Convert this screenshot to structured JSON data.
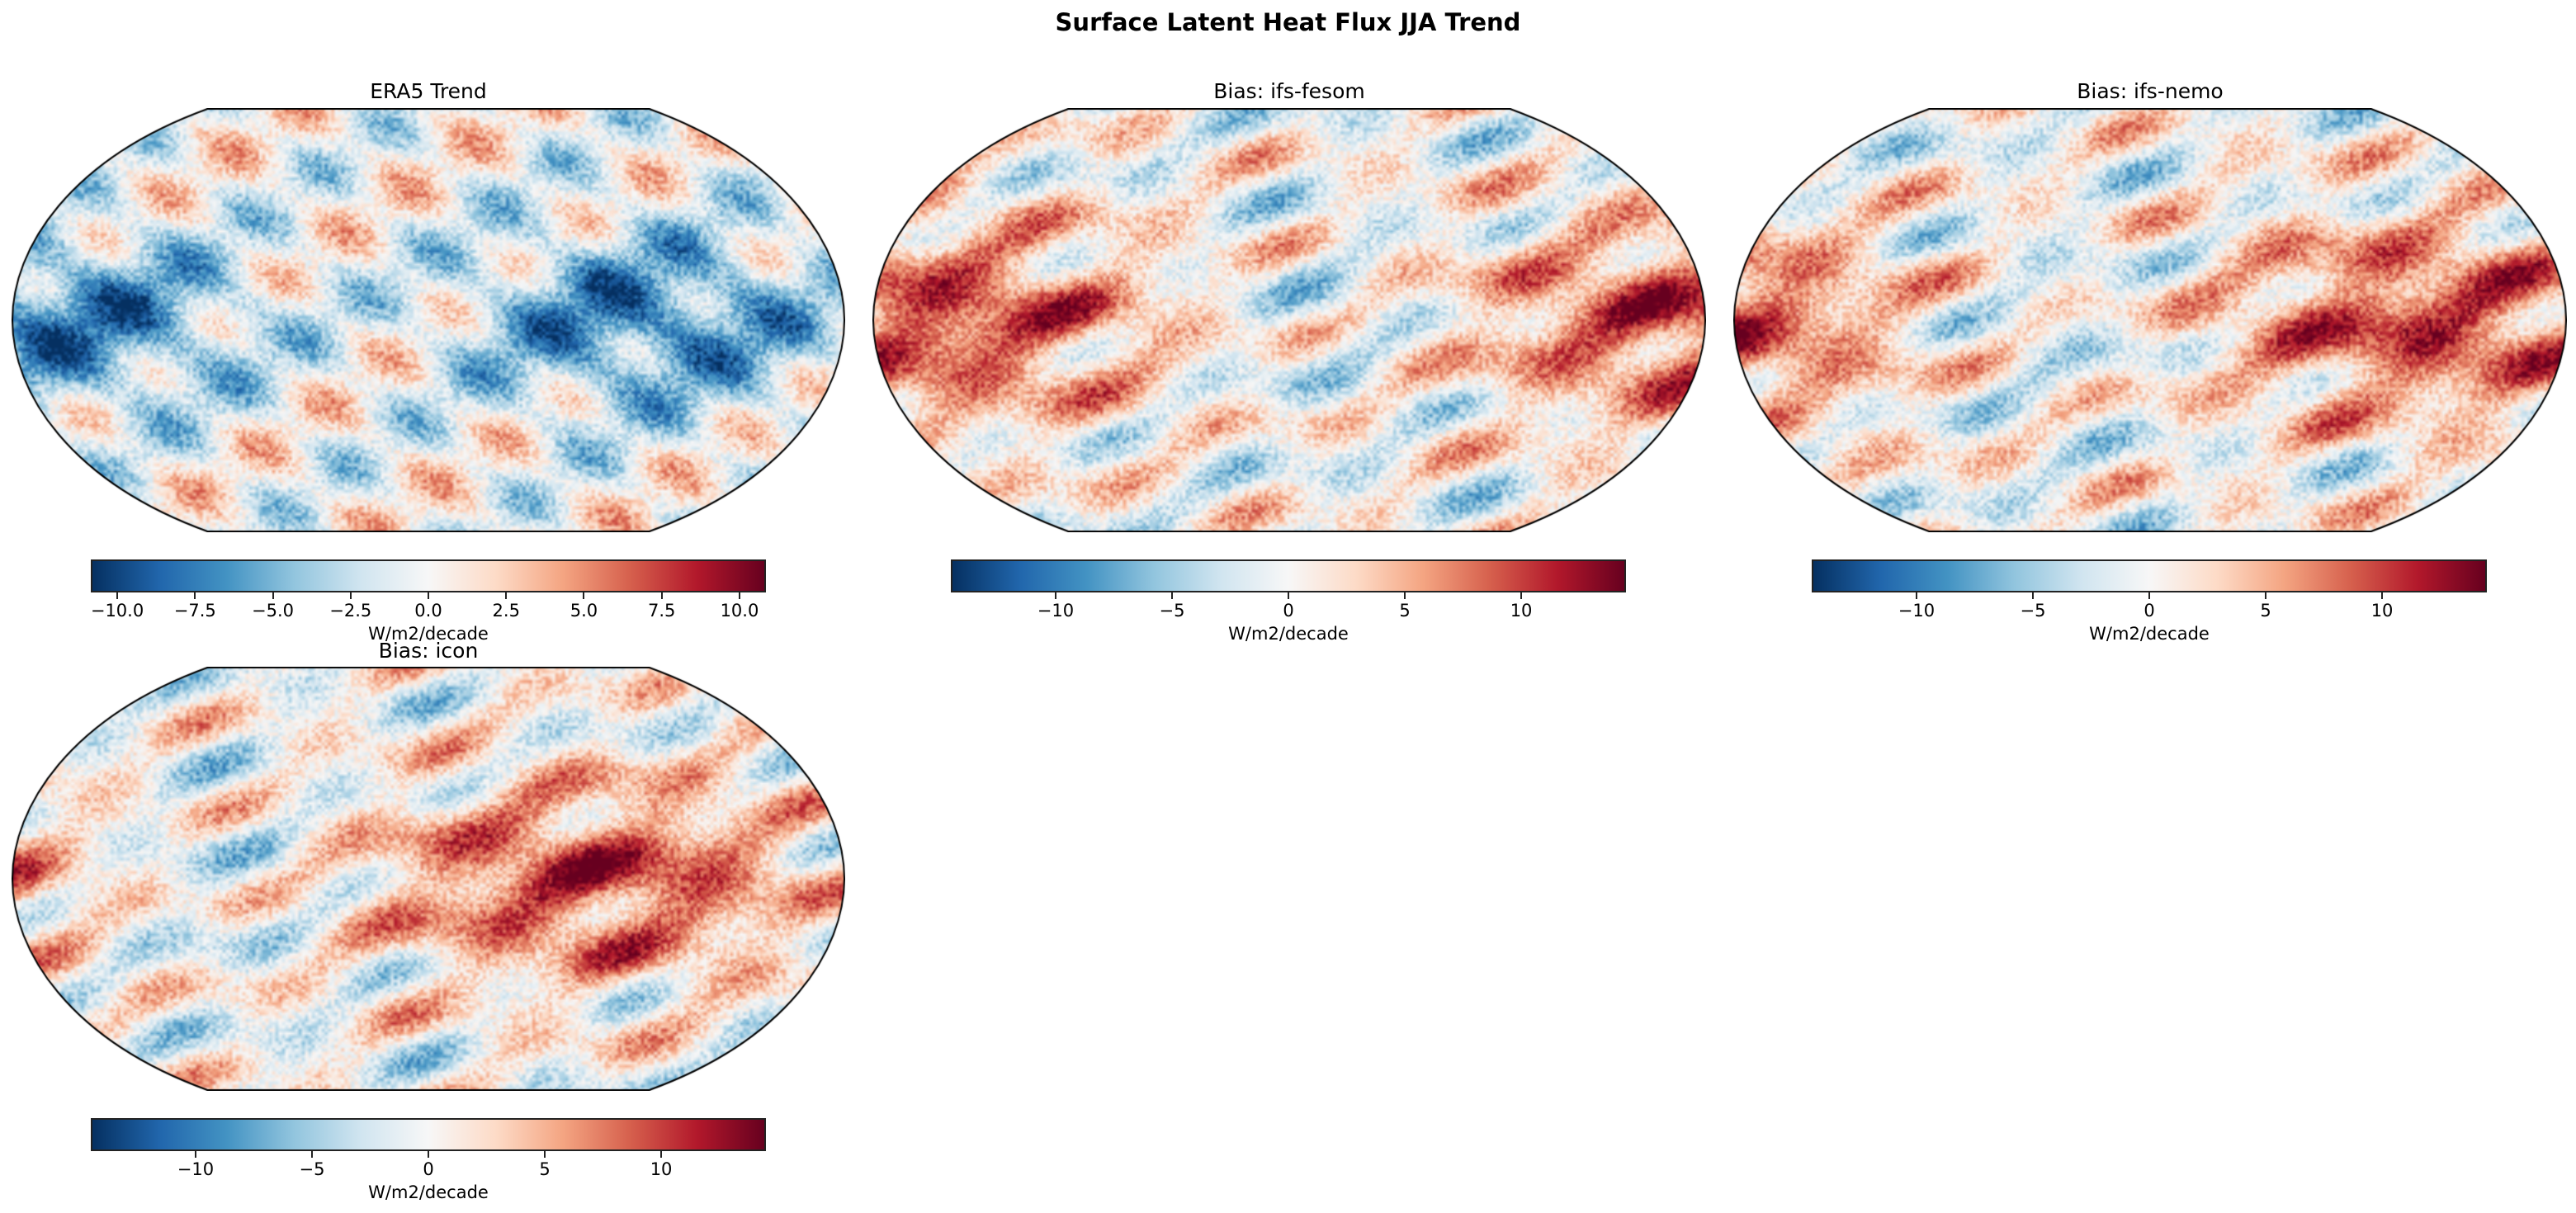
{
  "title": "Surface Latent Heat Flux JJA Trend",
  "chart_data": [
    {
      "type": "heatmap",
      "title": "ERA5 Trend",
      "colormap": "RdBu_r",
      "vmin": -10.85,
      "vmax": 10.85,
      "colorbar_ticks": [
        -10.0,
        -7.5,
        -5.0,
        -2.5,
        0.0,
        2.5,
        5.0,
        7.5,
        10.0
      ],
      "colorbar_tick_labels": [
        "−10.0",
        "−7.5",
        "−5.0",
        "−2.5",
        "0.0",
        "2.5",
        "5.0",
        "7.5",
        "10.0"
      ],
      "colorbar_label": "W/m2/decade",
      "projection": "Robinson"
    },
    {
      "type": "heatmap",
      "title": "Bias: ifs-fesom",
      "colormap": "RdBu_r",
      "vmin": -14.5,
      "vmax": 14.5,
      "colorbar_ticks": [
        -10,
        -5,
        0,
        5,
        10
      ],
      "colorbar_tick_labels": [
        "−10",
        "−5",
        "0",
        "5",
        "10"
      ],
      "colorbar_label": "W/m2/decade",
      "projection": "Robinson"
    },
    {
      "type": "heatmap",
      "title": "Bias: ifs-nemo",
      "colormap": "RdBu_r",
      "vmin": -14.5,
      "vmax": 14.5,
      "colorbar_ticks": [
        -10,
        -5,
        0,
        5,
        10
      ],
      "colorbar_tick_labels": [
        "−10",
        "−5",
        "0",
        "5",
        "10"
      ],
      "colorbar_label": "W/m2/decade",
      "projection": "Robinson"
    },
    {
      "type": "heatmap",
      "title": "Bias: icon",
      "colormap": "RdBu_r",
      "vmin": -14.5,
      "vmax": 14.5,
      "colorbar_ticks": [
        -10,
        -5,
        0,
        5,
        10
      ],
      "colorbar_tick_labels": [
        "−10",
        "−5",
        "0",
        "5",
        "10"
      ],
      "colorbar_label": "W/m2/decade",
      "projection": "Robinson"
    }
  ]
}
